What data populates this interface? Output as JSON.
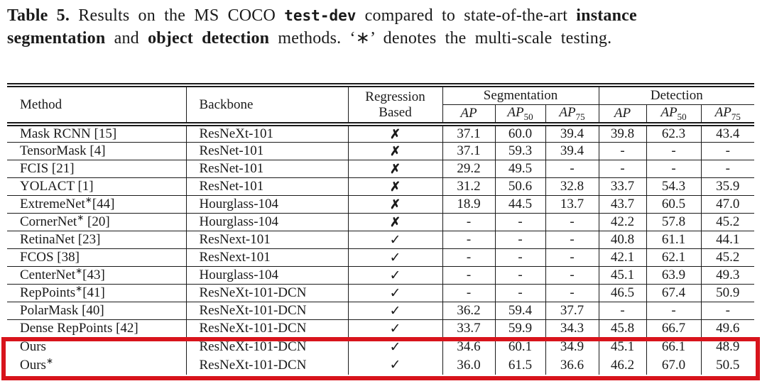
{
  "caption": {
    "label": "Table 5.",
    "line1_text": "Results on the MS COCO",
    "code": "test-dev",
    "line1_after": "compared to state-of-the-art",
    "line1_bold": "instance",
    "line2_bold": "segmentation",
    "line2_conj": "and",
    "line2_bold2": "object detection",
    "line2_tail": "methods. ‘∗’ denotes the multi-scale testing."
  },
  "table": {
    "header": {
      "method": "Method",
      "backbone": "Backbone",
      "regression_line1": "Regression",
      "regression_line2": "Based",
      "segmentation": "Segmentation",
      "detection": "Detection",
      "metrics": [
        {
          "base": "AP",
          "sub": ""
        },
        {
          "base": "AP",
          "sub": "50"
        },
        {
          "base": "AP",
          "sub": "75"
        }
      ]
    },
    "symbols": {
      "check": "✓",
      "cross": "✗"
    },
    "highlight_color": "#d8141c",
    "rows": [
      {
        "method": "Mask RCNN [15]",
        "backbone": "ResNeXt-101",
        "regression": "cross",
        "seg": [
          "37.1",
          "60.0",
          "39.4"
        ],
        "det": [
          "39.8",
          "62.3",
          "43.4"
        ],
        "highlight": false
      },
      {
        "method": "TensorMask [4]",
        "backbone": "ResNet-101",
        "regression": "cross",
        "seg": [
          "37.1",
          "59.3",
          "39.4"
        ],
        "det": [
          "-",
          "-",
          "-"
        ],
        "highlight": false
      },
      {
        "method": "FCIS [21]",
        "backbone": "ResNet-101",
        "regression": "cross",
        "seg": [
          "29.2",
          "49.5",
          "-"
        ],
        "det": [
          "-",
          "-",
          "-"
        ],
        "highlight": false
      },
      {
        "method": "YOLACT [1]",
        "backbone": "ResNet-101",
        "regression": "cross",
        "seg": [
          "31.2",
          "50.6",
          "32.8"
        ],
        "det": [
          "33.7",
          "54.3",
          "35.9"
        ],
        "highlight": false
      },
      {
        "method": "ExtremeNet*[44]",
        "backbone": "Hourglass-104",
        "regression": "cross",
        "seg": [
          "18.9",
          "44.5",
          "13.7"
        ],
        "det": [
          "43.7",
          "60.5",
          "47.0"
        ],
        "highlight": false
      },
      {
        "method": "CornerNet* [20]",
        "backbone": "Hourglass-104",
        "regression": "cross",
        "seg": [
          "-",
          "-",
          "-"
        ],
        "det": [
          "42.2",
          "57.8",
          "45.2"
        ],
        "highlight": false
      },
      {
        "method": "RetinaNet [23]",
        "backbone": "ResNext-101",
        "regression": "check",
        "seg": [
          "-",
          "-",
          "-"
        ],
        "det": [
          "40.8",
          "61.1",
          "44.1"
        ],
        "highlight": false
      },
      {
        "method": "FCOS [38]",
        "backbone": "ResNext-101",
        "regression": "check",
        "seg": [
          "-",
          "-",
          "-"
        ],
        "det": [
          "42.1",
          "62.1",
          "45.2"
        ],
        "highlight": false
      },
      {
        "method": "CenterNet*[43]",
        "backbone": "Hourglass-104",
        "regression": "check",
        "seg": [
          "-",
          "-",
          "-"
        ],
        "det": [
          "45.1",
          "63.9",
          "49.3"
        ],
        "highlight": false
      },
      {
        "method": "RepPoints*[41]",
        "backbone": "ResNeXt-101-DCN",
        "regression": "check",
        "seg": [
          "-",
          "-",
          "-"
        ],
        "det": [
          "46.5",
          "67.4",
          "50.9"
        ],
        "highlight": false
      },
      {
        "method": "PolarMask [40]",
        "backbone": "ResNeXt-101-DCN",
        "regression": "check",
        "seg": [
          "36.2",
          "59.4",
          "37.7"
        ],
        "det": [
          "-",
          "-",
          "-"
        ],
        "highlight": false
      },
      {
        "method": "Dense RepPoints [42]",
        "backbone": "ResNeXt-101-DCN",
        "regression": "check",
        "seg": [
          "33.7",
          "59.9",
          "34.3"
        ],
        "det": [
          "45.8",
          "66.7",
          "49.6"
        ],
        "highlight": false
      },
      {
        "method": "Ours",
        "backbone": "ResNeXt-101-DCN",
        "regression": "check",
        "seg": [
          "34.6",
          "60.1",
          "34.9"
        ],
        "det": [
          "45.1",
          "66.1",
          "48.9"
        ],
        "highlight": true
      },
      {
        "method": "Ours*",
        "backbone": "ResNeXt-101-DCN",
        "regression": "check",
        "seg": [
          "36.0",
          "61.5",
          "36.6"
        ],
        "det": [
          "46.2",
          "67.0",
          "50.5"
        ],
        "highlight": true
      }
    ]
  }
}
